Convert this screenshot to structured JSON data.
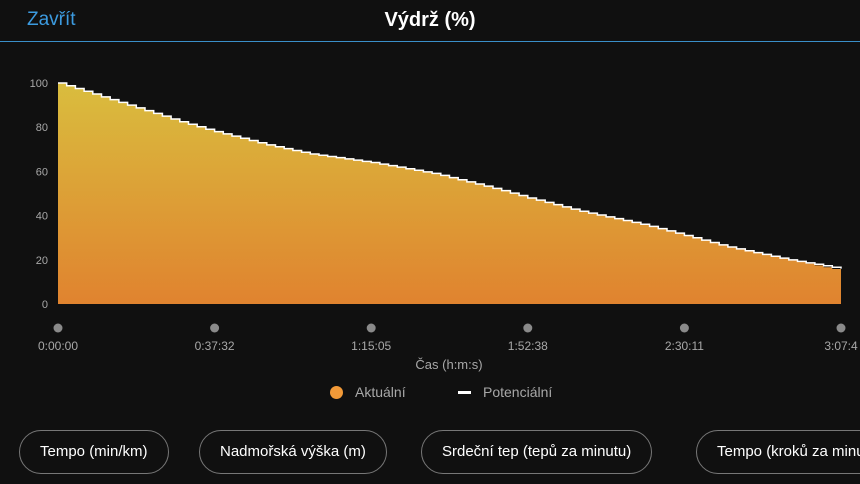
{
  "header": {
    "close_label": "Zavřít",
    "title": "Výdrž (%)"
  },
  "legend": {
    "actual_label": "Aktuální",
    "potential_label": "Potenciální"
  },
  "metric_buttons": [
    {
      "label": "Tempo (min/km)"
    },
    {
      "label": "Nadmořská výška (m)"
    },
    {
      "label": "Srdeční tep (tepů za minutu)"
    },
    {
      "label": "Tempo (kroků za minutu)"
    }
  ],
  "colors": {
    "accent": "#3c9be0",
    "actual_top": "#d9bd3e",
    "actual_bottom": "#e0832f",
    "potential": "#ffffff",
    "legend_actual": "#f29a38"
  },
  "chart_data": {
    "type": "area",
    "title": "Výdrž (%)",
    "xlabel": "Čas (h:m:s)",
    "ylabel": "",
    "x_ticks": [
      "0:00:00",
      "0:37:32",
      "1:15:05",
      "1:52:38",
      "2:30:11",
      "3:07:4"
    ],
    "y_ticks": [
      0,
      20,
      40,
      60,
      80,
      100
    ],
    "ylim": [
      0,
      100
    ],
    "x_unit": "minutes",
    "xlim": [
      0,
      187.7
    ],
    "grid": false,
    "legend_position": "bottom",
    "series": [
      {
        "name": "Aktuální",
        "x": [
          0,
          10,
          20,
          30,
          37.5,
          50,
          60,
          75.1,
          90,
          105,
          112.6,
          125,
          140,
          150.2,
          160,
          175,
          187.7
        ],
        "values": [
          100,
          94,
          88,
          82,
          78,
          72,
          68,
          64,
          59,
          52,
          48,
          42,
          36,
          31,
          26,
          20,
          15
        ]
      },
      {
        "name": "Potenciální",
        "x": [
          0,
          10,
          20,
          30,
          37.5,
          50,
          60,
          75.1,
          90,
          105,
          112.6,
          125,
          140,
          150.2,
          160,
          175,
          187.7
        ],
        "values": [
          100,
          94,
          88,
          82,
          78,
          72,
          68,
          64,
          59,
          52,
          48,
          42,
          36,
          31,
          26,
          20,
          16
        ]
      }
    ]
  }
}
